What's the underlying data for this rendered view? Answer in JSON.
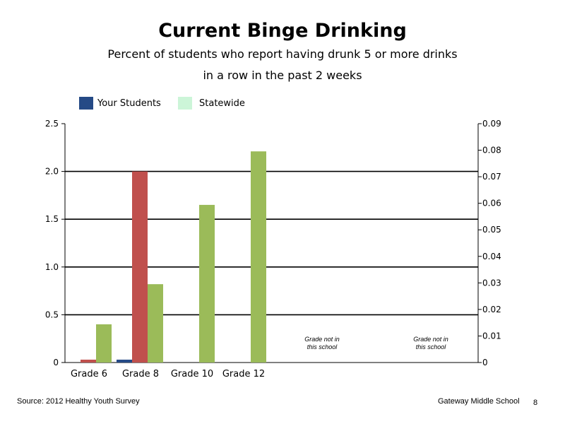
{
  "title": "Current Binge Drinking",
  "subtitle_line1": "Percent of students who report having drunk 5 or more drinks",
  "subtitle_line2": "in a row in the past 2 weeks",
  "legend": {
    "your_students": "Your Students",
    "statewide": "Statewide"
  },
  "colors": {
    "your_students": "#254a86",
    "statewide_legend": "#ccf5d8",
    "bar_red": "#c0504d",
    "bar_green": "#9bbb59"
  },
  "footer": {
    "source": "Source: 2012 Healthy Youth Survey",
    "school": "Gateway Middle  School",
    "page": "8"
  },
  "chart_data": {
    "type": "bar",
    "categories": [
      "Grade 6",
      "Grade 8",
      "Grade 10",
      "Grade 12",
      "",
      ""
    ],
    "series": [
      {
        "name": "Your Students",
        "color": "#254a86",
        "axis": "left",
        "values": [
          0,
          0.03,
          null,
          null,
          null,
          null
        ]
      },
      {
        "name": "",
        "color": "#c0504d",
        "axis": "left",
        "values": [
          0.03,
          2.0,
          null,
          null,
          null,
          null
        ]
      },
      {
        "name": "",
        "color": "#9bbb59",
        "axis": "left",
        "values": [
          0.4,
          0.82,
          1.65,
          2.21,
          null,
          null
        ]
      }
    ],
    "left_axis": {
      "min": 0,
      "max": 2.5,
      "ticks": [
        "0",
        "0.5",
        "1.0",
        "1.5",
        "2.0",
        "2.5"
      ]
    },
    "right_axis": {
      "min": 0,
      "max": 0.09,
      "ticks": [
        "0",
        "0.01",
        "0.02",
        "0.03",
        "0.04",
        "0.05",
        "0.06",
        "0.07",
        "0.08",
        "0.09"
      ]
    },
    "gridlines": [
      0.5,
      1.0,
      1.5,
      2.0
    ],
    "annotations": [
      {
        "category_index": 4,
        "lines": [
          "Grade not in",
          "this school"
        ]
      },
      {
        "category_index": 5,
        "lines": [
          "Grade not in",
          "this school"
        ]
      }
    ]
  }
}
